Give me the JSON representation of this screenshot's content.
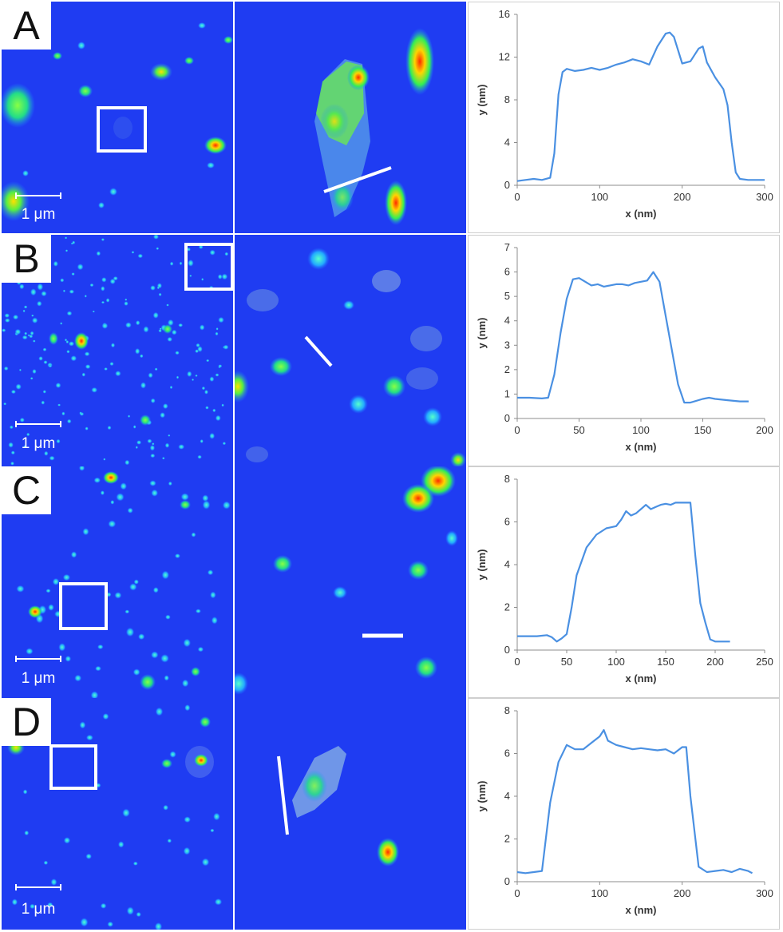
{
  "panels": [
    {
      "label": "A",
      "scale_bar": "1 μm",
      "chart_data": {
        "type": "line",
        "xlabel": "x (nm)",
        "ylabel": "y (nm)",
        "xlim": [
          0,
          300
        ],
        "ylim": [
          0,
          16
        ],
        "xticks": [
          0,
          100,
          200,
          300
        ],
        "yticks": [
          0,
          4,
          8,
          12,
          16
        ],
        "x": [
          0,
          10,
          20,
          30,
          40,
          45,
          50,
          55,
          60,
          70,
          80,
          90,
          100,
          110,
          120,
          130,
          140,
          150,
          160,
          170,
          180,
          185,
          190,
          200,
          210,
          220,
          225,
          230,
          240,
          250,
          255,
          260,
          265,
          270,
          280,
          290,
          300
        ],
        "y": [
          0.4,
          0.5,
          0.6,
          0.5,
          0.7,
          3.0,
          8.5,
          10.6,
          10.9,
          10.7,
          10.8,
          11.0,
          10.8,
          11.0,
          11.3,
          11.5,
          11.8,
          11.6,
          11.3,
          13.0,
          14.2,
          14.3,
          13.9,
          11.4,
          11.6,
          12.8,
          13.0,
          11.5,
          10.1,
          9.0,
          7.5,
          4.0,
          1.2,
          0.6,
          0.5,
          0.5,
          0.5
        ]
      }
    },
    {
      "label": "B",
      "scale_bar": "1 μm",
      "chart_data": {
        "type": "line",
        "xlabel": "x (nm)",
        "ylabel": "y (nm)",
        "xlim": [
          0,
          200
        ],
        "ylim": [
          0,
          7
        ],
        "xticks": [
          0,
          50,
          100,
          150,
          200
        ],
        "yticks": [
          0,
          1,
          2,
          3,
          4,
          5,
          6,
          7
        ],
        "x": [
          0,
          10,
          20,
          25,
          30,
          35,
          40,
          45,
          50,
          55,
          60,
          65,
          70,
          75,
          80,
          85,
          90,
          95,
          100,
          105,
          110,
          115,
          120,
          125,
          130,
          135,
          140,
          150,
          155,
          160,
          170,
          180,
          187
        ],
        "y": [
          0.85,
          0.85,
          0.82,
          0.85,
          1.8,
          3.5,
          4.9,
          5.7,
          5.75,
          5.6,
          5.45,
          5.5,
          5.4,
          5.45,
          5.5,
          5.5,
          5.45,
          5.55,
          5.6,
          5.65,
          6.0,
          5.6,
          4.2,
          2.8,
          1.4,
          0.65,
          0.65,
          0.8,
          0.85,
          0.8,
          0.75,
          0.7,
          0.7
        ]
      }
    },
    {
      "label": "C",
      "scale_bar": "1 μm",
      "chart_data": {
        "type": "line",
        "xlabel": "x (nm)",
        "ylabel": "y (nm)",
        "xlim": [
          0,
          250
        ],
        "ylim": [
          0,
          8
        ],
        "xticks": [
          0,
          50,
          100,
          150,
          200,
          250
        ],
        "yticks": [
          0,
          2,
          4,
          6,
          8
        ],
        "x": [
          0,
          10,
          20,
          30,
          35,
          40,
          45,
          50,
          55,
          60,
          70,
          80,
          90,
          100,
          105,
          110,
          115,
          120,
          125,
          130,
          135,
          140,
          145,
          150,
          155,
          160,
          165,
          170,
          175,
          180,
          185,
          190,
          195,
          200,
          210,
          215
        ],
        "y": [
          0.65,
          0.65,
          0.65,
          0.7,
          0.6,
          0.4,
          0.55,
          0.75,
          2.0,
          3.5,
          4.8,
          5.4,
          5.7,
          5.8,
          6.1,
          6.5,
          6.3,
          6.4,
          6.6,
          6.8,
          6.6,
          6.7,
          6.8,
          6.85,
          6.8,
          6.9,
          6.9,
          6.9,
          6.9,
          4.4,
          2.2,
          1.3,
          0.5,
          0.4,
          0.4,
          0.4
        ]
      }
    },
    {
      "label": "D",
      "scale_bar": "1 μm",
      "chart_data": {
        "type": "line",
        "xlabel": "x (nm)",
        "ylabel": "y (nm)",
        "xlim": [
          0,
          300
        ],
        "ylim": [
          0,
          8
        ],
        "xticks": [
          0,
          100,
          200,
          300
        ],
        "yticks": [
          0,
          2,
          4,
          6,
          8
        ],
        "x": [
          0,
          10,
          20,
          30,
          40,
          50,
          60,
          70,
          80,
          90,
          100,
          105,
          110,
          120,
          130,
          140,
          150,
          160,
          170,
          180,
          190,
          200,
          205,
          210,
          220,
          230,
          240,
          250,
          260,
          270,
          280,
          285
        ],
        "y": [
          0.45,
          0.4,
          0.45,
          0.5,
          3.7,
          5.6,
          6.4,
          6.2,
          6.2,
          6.5,
          6.8,
          7.1,
          6.6,
          6.4,
          6.3,
          6.2,
          6.25,
          6.2,
          6.15,
          6.2,
          6.0,
          6.3,
          6.3,
          4.0,
          0.7,
          0.45,
          0.5,
          0.55,
          0.45,
          0.6,
          0.5,
          0.4
        ]
      }
    }
  ]
}
